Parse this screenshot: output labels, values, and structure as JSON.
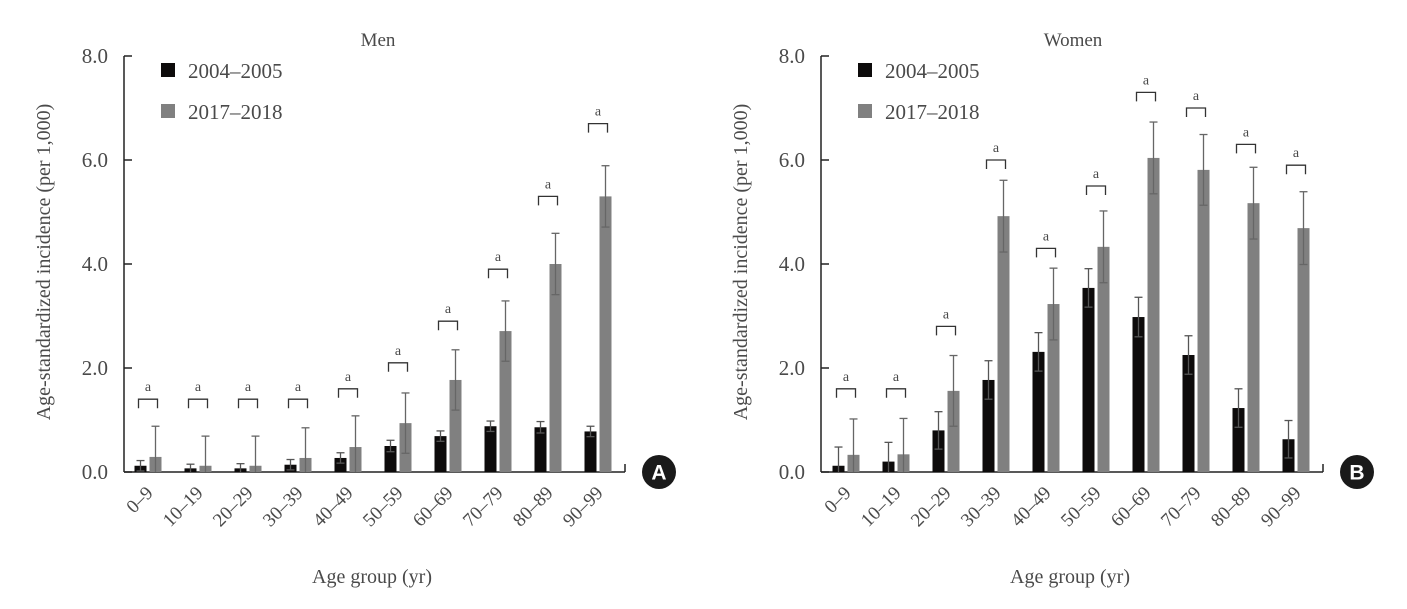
{
  "chart_data": [
    {
      "type": "bar",
      "panel_label": "A",
      "title": "Men",
      "xlabel": "Age group (yr)",
      "ylabel": "Age-standardized incidence (per 1,000)",
      "ylim": [
        0,
        8
      ],
      "yticks": [
        "0.0",
        "2.0",
        "4.0",
        "6.0",
        "8.0"
      ],
      "ytick_values": [
        0,
        2,
        4,
        6,
        8
      ],
      "grid": false,
      "legend_position": "top-left",
      "categories": [
        "0–9",
        "10–19",
        "20–29",
        "30–39",
        "40–49",
        "50–59",
        "60–69",
        "70–79",
        "80–89",
        "90–99"
      ],
      "series": [
        {
          "name": "2004–2005",
          "color": "#0d0b0b",
          "values": [
            0.12,
            0.07,
            0.07,
            0.14,
            0.27,
            0.5,
            0.69,
            0.88,
            0.86,
            0.78
          ],
          "error": [
            0.1,
            0.08,
            0.09,
            0.1,
            0.1,
            0.11,
            0.1,
            0.1,
            0.11,
            0.1
          ]
        },
        {
          "name": "2017–2018",
          "color": "#808080",
          "values": [
            0.29,
            0.12,
            0.12,
            0.27,
            0.48,
            0.94,
            1.77,
            2.71,
            4.0,
            5.3
          ],
          "error": [
            0.59,
            0.57,
            0.57,
            0.58,
            0.6,
            0.58,
            0.58,
            0.58,
            0.59,
            0.59
          ]
        }
      ],
      "annotations": [
        "a",
        "a",
        "a",
        "a",
        "a",
        "a",
        "a",
        "a",
        "a",
        "a"
      ],
      "annotation_values": [
        1.4,
        1.4,
        1.4,
        1.4,
        1.6,
        2.1,
        2.9,
        3.9,
        5.3,
        6.7
      ]
    },
    {
      "type": "bar",
      "panel_label": "B",
      "title": "Women",
      "xlabel": "Age group (yr)",
      "ylabel": "Age-standardized incidence (per 1,000)",
      "ylim": [
        0,
        8
      ],
      "yticks": [
        "0.0",
        "2.0",
        "4.0",
        "6.0",
        "8.0"
      ],
      "ytick_values": [
        0,
        2,
        4,
        6,
        8
      ],
      "grid": false,
      "legend_position": "top-left",
      "categories": [
        "0–9",
        "10–19",
        "20–29",
        "30–39",
        "40–49",
        "50–59",
        "60–69",
        "70–79",
        "80–89",
        "90–99"
      ],
      "series": [
        {
          "name": "2004–2005",
          "color": "#0d0b0b",
          "values": [
            0.12,
            0.2,
            0.8,
            1.77,
            2.31,
            3.54,
            2.98,
            2.25,
            1.23,
            0.63
          ],
          "error": [
            0.36,
            0.37,
            0.36,
            0.37,
            0.37,
            0.37,
            0.38,
            0.37,
            0.37,
            0.36
          ]
        },
        {
          "name": "2017–2018",
          "color": "#808080",
          "values": [
            0.33,
            0.34,
            1.56,
            4.92,
            3.23,
            4.33,
            6.04,
            5.81,
            5.17,
            4.69
          ],
          "error": [
            0.69,
            0.69,
            0.68,
            0.69,
            0.69,
            0.69,
            0.69,
            0.68,
            0.69,
            0.7
          ]
        }
      ],
      "annotations": [
        "a",
        "a",
        "a",
        "a",
        "a",
        "a",
        "a",
        "a",
        "a",
        "a"
      ],
      "annotation_values": [
        1.6,
        1.6,
        2.8,
        6.0,
        4.3,
        5.5,
        7.3,
        7.0,
        6.3,
        5.9
      ]
    }
  ]
}
